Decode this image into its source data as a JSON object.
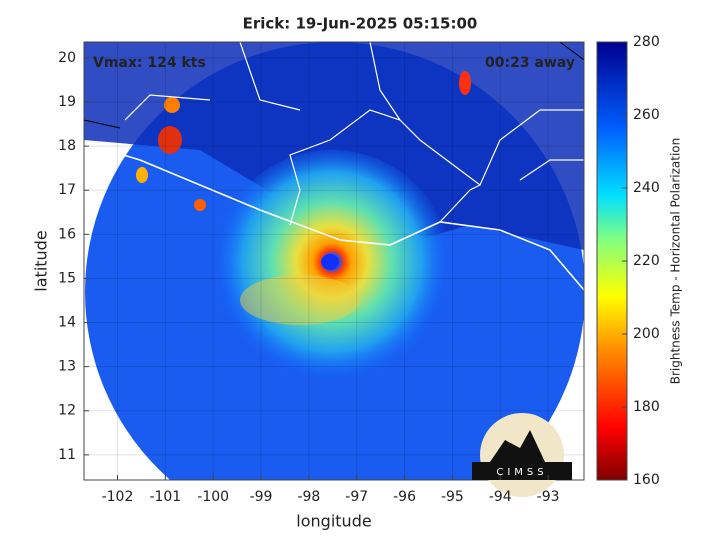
{
  "map": {
    "title": "Erick: 19-Jun-2025 05:15:00",
    "xlabel": "longitude",
    "ylabel": "latitude",
    "annotations": [
      "Vmax: 124 kts",
      "00:23 away"
    ],
    "logo": "CIMSS",
    "xlim": [
      -102.7,
      -92.25
    ],
    "ylim": [
      10.43,
      20.36
    ],
    "xticks": [
      -102,
      -101,
      -100,
      -99,
      -98,
      -97,
      -96,
      -95,
      -94,
      -93
    ],
    "yticks": [
      11,
      12,
      13,
      14,
      15,
      16,
      17,
      18,
      19,
      20
    ],
    "grid": true,
    "colorbar": {
      "label": "Brightness Temp - Horizontal Polarization",
      "lim": [
        160,
        280
      ],
      "ticks": [
        160,
        180,
        200,
        220,
        240,
        260,
        280
      ]
    }
  }
}
